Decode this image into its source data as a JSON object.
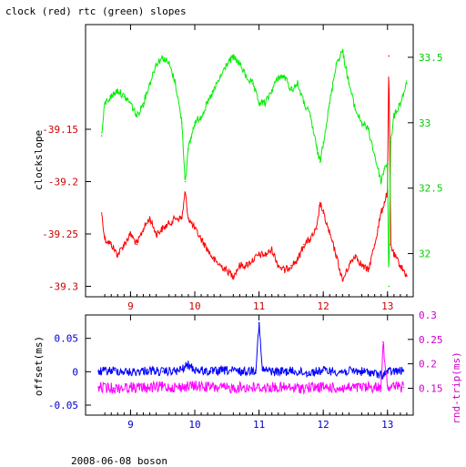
{
  "title": "clock (red) rtc (green) slopes",
  "footer": "2008-06-08 boson",
  "colors": {
    "clock": "#ff0000",
    "rtc": "#00ee00",
    "offset": "#0000ff",
    "rndtrip": "#ff00ff",
    "axis": "#000000",
    "left_top_ticks": "#cc0000",
    "right_top_ticks": "#00cc00",
    "left_bottom_ticks": "#0000cc",
    "right_bottom_ticks": "#cc00cc"
  },
  "chart_data": [
    {
      "type": "line",
      "name": "top panel",
      "xlabel": "",
      "xticks": [
        "9",
        "10",
        "11",
        "12",
        "13"
      ],
      "xlim": [
        8.3,
        13.4
      ],
      "ylabel_left": "clockslope",
      "ylim_left": [
        -39.31,
        -39.05
      ],
      "yticks_left": [
        "-39.15",
        "-39.2",
        "-39.25",
        "-39.3"
      ],
      "ylabel_right": "",
      "ylim_right": [
        31.67,
        33.75
      ],
      "yticks_right": [
        "33.5",
        "33",
        "32.5",
        "32"
      ],
      "series": [
        {
          "name": "clock",
          "axis": "left",
          "color": "red",
          "x": [
            8.55,
            8.6,
            8.7,
            8.8,
            8.9,
            9.0,
            9.1,
            9.2,
            9.3,
            9.4,
            9.5,
            9.6,
            9.7,
            9.8,
            9.85,
            9.9,
            10.0,
            10.1,
            10.2,
            10.3,
            10.4,
            10.5,
            10.6,
            10.7,
            10.8,
            10.9,
            11.0,
            11.1,
            11.2,
            11.3,
            11.4,
            11.5,
            11.6,
            11.7,
            11.8,
            11.9,
            11.95,
            12.0,
            12.1,
            12.2,
            12.3,
            12.4,
            12.5,
            12.6,
            12.7,
            12.8,
            12.9,
            12.95,
            13.0,
            13.02,
            13.05,
            13.1,
            13.2,
            13.3
          ],
          "y": [
            -39.23,
            -39.255,
            -39.26,
            -39.27,
            -39.26,
            -39.25,
            -39.26,
            -39.245,
            -39.235,
            -39.25,
            -39.245,
            -39.24,
            -39.235,
            -39.235,
            -39.21,
            -39.235,
            -39.245,
            -39.255,
            -39.265,
            -39.275,
            -39.28,
            -39.285,
            -39.29,
            -39.28,
            -39.28,
            -39.275,
            -39.27,
            -39.27,
            -39.265,
            -39.28,
            -39.285,
            -39.28,
            -39.275,
            -39.26,
            -39.255,
            -39.245,
            -39.22,
            -39.23,
            -39.25,
            -39.27,
            -39.295,
            -39.28,
            -39.27,
            -39.28,
            -39.285,
            -39.26,
            -39.23,
            -39.22,
            -39.21,
            -39.08,
            -39.26,
            -39.27,
            -39.28,
            -39.29
          ]
        },
        {
          "name": "rtc",
          "axis": "right",
          "color": "green",
          "x": [
            8.55,
            8.6,
            8.7,
            8.8,
            8.9,
            9.0,
            9.1,
            9.2,
            9.3,
            9.4,
            9.5,
            9.6,
            9.7,
            9.8,
            9.85,
            9.9,
            10.0,
            10.1,
            10.2,
            10.3,
            10.4,
            10.5,
            10.6,
            10.7,
            10.8,
            10.9,
            11.0,
            11.1,
            11.2,
            11.3,
            11.4,
            11.5,
            11.6,
            11.7,
            11.8,
            11.9,
            11.95,
            12.0,
            12.1,
            12.2,
            12.3,
            12.4,
            12.5,
            12.6,
            12.7,
            12.8,
            12.9,
            12.95,
            13.0,
            13.02,
            13.05,
            13.1,
            13.2,
            13.3
          ],
          "y": [
            32.9,
            33.15,
            33.2,
            33.25,
            33.2,
            33.15,
            33.05,
            33.15,
            33.3,
            33.45,
            33.5,
            33.45,
            33.3,
            33.0,
            32.55,
            32.8,
            33.0,
            33.05,
            33.15,
            33.25,
            33.35,
            33.45,
            33.5,
            33.45,
            33.35,
            33.3,
            33.15,
            33.15,
            33.25,
            33.35,
            33.35,
            33.25,
            33.3,
            33.15,
            33.05,
            32.8,
            32.7,
            32.85,
            33.15,
            33.45,
            33.55,
            33.3,
            33.1,
            33.0,
            32.95,
            32.75,
            32.55,
            32.65,
            32.7,
            31.75,
            32.85,
            33.05,
            33.15,
            33.3
          ]
        }
      ]
    },
    {
      "type": "line",
      "name": "bottom panel",
      "xlabel": "",
      "xticks": [
        "9",
        "10",
        "11",
        "12",
        "13"
      ],
      "xlim": [
        8.3,
        13.4
      ],
      "ylabel_left": "offset(ms)",
      "ylim_left": [
        -0.065,
        0.085
      ],
      "yticks_left": [
        "0.05",
        "0",
        "-0.05"
      ],
      "ylabel_right": "rnd-trip(ms)",
      "ylim_right": [
        0.095,
        0.3
      ],
      "yticks_right": [
        "0.3",
        "0.25",
        "0.2",
        "0.15"
      ],
      "series": [
        {
          "name": "offset",
          "axis": "left",
          "color": "blue",
          "x": [
            8.5,
            8.75,
            9.0,
            9.25,
            9.5,
            9.75,
            9.9,
            10.0,
            10.25,
            10.5,
            10.75,
            10.95,
            11.0,
            11.05,
            11.25,
            11.5,
            11.75,
            12.0,
            12.25,
            12.5,
            12.75,
            12.9,
            13.0,
            13.25
          ],
          "y": [
            0.0,
            0.002,
            -0.001,
            0.002,
            0.0,
            0.001,
            0.01,
            0.003,
            0.0,
            0.002,
            0.0,
            0.003,
            0.073,
            0.003,
            0.0,
            0.001,
            -0.002,
            0.002,
            0.0,
            0.001,
            -0.001,
            -0.006,
            0.0,
            0.001
          ]
        },
        {
          "name": "rnd-trip",
          "axis": "right",
          "color": "magenta",
          "x": [
            8.5,
            8.75,
            9.0,
            9.25,
            9.5,
            9.75,
            10.0,
            10.25,
            10.5,
            10.75,
            11.0,
            11.25,
            11.5,
            11.75,
            12.0,
            12.25,
            12.5,
            12.75,
            12.9,
            12.93,
            13.0,
            13.25
          ],
          "y": [
            0.152,
            0.15,
            0.152,
            0.151,
            0.153,
            0.152,
            0.155,
            0.152,
            0.15,
            0.152,
            0.151,
            0.152,
            0.15,
            0.151,
            0.152,
            0.15,
            0.151,
            0.152,
            0.152,
            0.245,
            0.155,
            0.152
          ]
        }
      ]
    }
  ]
}
